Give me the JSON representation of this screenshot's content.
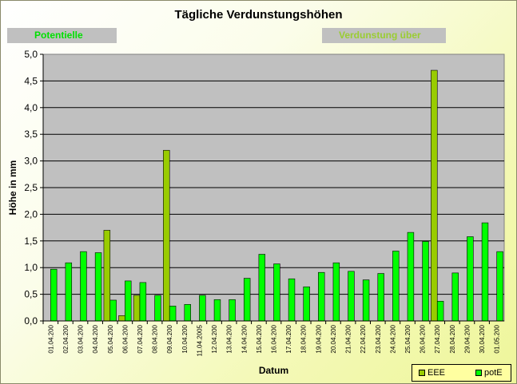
{
  "chart_data": {
    "type": "bar",
    "title": "Tägliche Verdunstungshöhen",
    "xlabel": "Datum",
    "ylabel": "Höhe in mm",
    "ylim": [
      0,
      5
    ],
    "yticks": [
      "0,0",
      "0,5",
      "1,0",
      "1,5",
      "2,0",
      "2,5",
      "3,0",
      "3,5",
      "4,0",
      "4,5",
      "5,0"
    ],
    "grid": true,
    "legend_position": "bottom-right",
    "categories": [
      "01.04.200",
      "02.04.200",
      "03.04.200",
      "04.04.200",
      "05.04.200",
      "06.04.200",
      "07.04.200",
      "08.04.200",
      "09.04.200",
      "10.04.200",
      "11.04.2005",
      "12.04.200",
      "13.04.200",
      "14.04.200",
      "15.04.200",
      "16.04.200",
      "17.04.200",
      "18.04.200",
      "19.04.200",
      "20.04.200",
      "21.04.200",
      "22.04.200",
      "23.04.200",
      "24.04.200",
      "25.04.200",
      "26.04.200",
      "27.04.200",
      "28.04.200",
      "29.04.200",
      "30.04.200",
      "01.05.200"
    ],
    "series": [
      {
        "name": "EEE",
        "color": "#99cc00",
        "values": [
          null,
          null,
          null,
          null,
          1.7,
          0.1,
          0.48,
          null,
          3.2,
          null,
          null,
          null,
          null,
          null,
          null,
          null,
          null,
          null,
          null,
          null,
          null,
          null,
          null,
          null,
          null,
          null,
          4.7,
          null,
          null,
          null,
          null
        ]
      },
      {
        "name": "potE",
        "color": "#00ff00",
        "values": [
          0.97,
          1.09,
          1.3,
          1.28,
          0.39,
          0.75,
          0.72,
          0.48,
          0.28,
          0.31,
          0.48,
          0.4,
          0.4,
          0.8,
          1.25,
          1.07,
          0.79,
          0.64,
          0.91,
          1.09,
          0.93,
          0.77,
          0.89,
          1.31,
          1.66,
          1.49,
          0.37,
          0.9,
          1.58,
          1.84,
          1.3
        ]
      }
    ]
  },
  "badges": {
    "left": "Potentielle",
    "right": "Verdunstung über"
  }
}
